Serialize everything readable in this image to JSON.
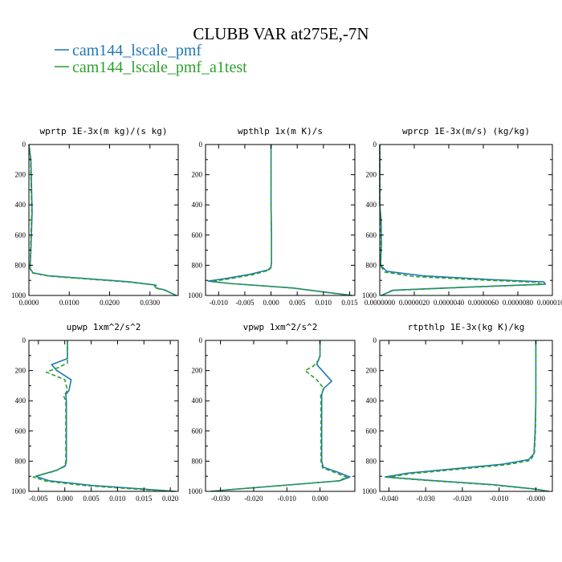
{
  "figure": {
    "title": "CLUBB VAR at275E,-7N",
    "legend": [
      {
        "label": "cam144_lscale_pmf",
        "color": "#1f77b4",
        "dash": "solid"
      },
      {
        "label": "cam144_lscale_pmf_a1test",
        "color": "#2ca02c",
        "dash": "dashed"
      }
    ]
  },
  "chart_data": [
    {
      "type": "line",
      "name": "wprtp",
      "title": "wprtp  1E-3x(m kg)/(s kg)",
      "xlim": [
        0,
        0.037
      ],
      "ylim": [
        0,
        1000
      ],
      "y_inverted": true,
      "xticks": [
        0,
        0.01,
        0.02,
        0.03
      ],
      "xticklabels": [
        "0.0000",
        "0.0100",
        "0.0200",
        "0.0300"
      ],
      "yticks": [
        0,
        200,
        400,
        600,
        800,
        1000
      ],
      "series": [
        {
          "name": "cam144_lscale_pmf",
          "x": [
            0,
            0.0005,
            0.0008,
            0.0005,
            0.0003,
            0.001,
            0.005,
            0.015,
            0.025,
            0.031,
            0.0315,
            0.0335,
            0.0365
          ],
          "y": [
            0,
            100,
            450,
            700,
            820,
            850,
            870,
            890,
            910,
            930,
            950,
            962,
            1000
          ]
        },
        {
          "name": "cam144_lscale_pmf_a1test",
          "x": [
            0,
            0.0004,
            0.0007,
            0.0004,
            0.0003,
            0.001,
            0.005,
            0.015,
            0.025,
            0.0315,
            0.0315,
            0.0335,
            0.0365
          ],
          "y": [
            0,
            100,
            450,
            700,
            825,
            852,
            872,
            892,
            912,
            932,
            952,
            964,
            1000
          ]
        }
      ]
    },
    {
      "type": "line",
      "name": "wpthlp",
      "title": "wpthlp  1x(m K)/s",
      "xlim": [
        -0.0125,
        0.016
      ],
      "ylim": [
        0,
        1000
      ],
      "y_inverted": true,
      "xticks": [
        -0.01,
        -0.005,
        0,
        0.005,
        0.01,
        0.015
      ],
      "xticklabels": [
        "-0.010",
        "-0.005",
        "0.000",
        "0.005",
        "0.010",
        "0.015"
      ],
      "yticks": [
        0,
        200,
        400,
        600,
        800,
        1000
      ],
      "series": [
        {
          "name": "cam144_lscale_pmf",
          "x": [
            0,
            0,
            0.0001,
            0.0001,
            0,
            -0.0005,
            -0.004,
            -0.009,
            -0.012,
            -0.008,
            0.004,
            0.012,
            0.0155
          ],
          "y": [
            0,
            400,
            600,
            780,
            810,
            830,
            860,
            890,
            905,
            920,
            950,
            985,
            1000
          ]
        },
        {
          "name": "cam144_lscale_pmf_a1test",
          "x": [
            0,
            0,
            0.0001,
            0.0001,
            0,
            -0.0004,
            -0.0035,
            -0.0085,
            -0.0115,
            -0.0075,
            0.0045,
            0.012,
            0.0155
          ],
          "y": [
            0,
            400,
            600,
            780,
            815,
            833,
            863,
            893,
            908,
            922,
            952,
            986,
            1000
          ]
        }
      ]
    },
    {
      "type": "line",
      "name": "wprcp",
      "title": "wprcp  1E-3x(m/s) (kg/kg)",
      "xlim": [
        0,
        1e-05
      ],
      "ylim": [
        0,
        1000
      ],
      "y_inverted": true,
      "xticks": [
        0,
        2e-06,
        4e-06,
        6e-06,
        8e-06,
        1e-05
      ],
      "xticklabels": [
        "0.0000000",
        "0.0000020",
        "0.0000040",
        "0.0000060",
        "0.0000080",
        "0.0000100"
      ],
      "yticks": [
        0,
        200,
        400,
        600,
        800,
        1000
      ],
      "series": [
        {
          "name": "cam144_lscale_pmf",
          "x": [
            0,
            0,
            8e-08,
            1e-07,
            5e-08,
            4e-07,
            2.5e-06,
            6.5e-06,
            9.5e-06,
            9.6e-06,
            5e-06,
            8e-07,
            1e-07
          ],
          "y": [
            0,
            400,
            500,
            650,
            800,
            840,
            870,
            895,
            910,
            925,
            945,
            965,
            1000
          ]
        },
        {
          "name": "cam144_lscale_pmf_a1test",
          "x": [
            0,
            0,
            5e-08,
            7e-08,
            4e-08,
            3e-07,
            2e-06,
            6e-06,
            9e-06,
            9.4e-06,
            4.8e-06,
            7e-07,
            1e-07
          ],
          "y": [
            0,
            400,
            500,
            650,
            805,
            845,
            875,
            898,
            912,
            927,
            947,
            967,
            1000
          ]
        }
      ]
    },
    {
      "type": "line",
      "name": "upwp",
      "title": "upwp  1xm^2/s^2",
      "xlim": [
        -0.0068,
        0.0215
      ],
      "ylim": [
        0,
        1000
      ],
      "y_inverted": true,
      "xticks": [
        -0.005,
        0,
        0.005,
        0.01,
        0.015,
        0.02
      ],
      "xticklabels": [
        "-0.005",
        "0.000",
        "0.005",
        "0.010",
        "0.015",
        "0.020"
      ],
      "yticks": [
        0,
        200,
        400,
        600,
        800,
        1000
      ],
      "series": [
        {
          "name": "cam144_lscale_pmf",
          "x": [
            0.0005,
            0.0005,
            -0.0025,
            -0.0015,
            0.0012,
            0.0008,
            0.0002,
            0.0003,
            0.0003,
            0.0003,
            0.0001,
            -0.0015,
            -0.0055,
            -0.003,
            0.005,
            0.015,
            0.021
          ],
          "y": [
            0,
            120,
            160,
            200,
            260,
            330,
            360,
            400,
            600,
            800,
            830,
            860,
            900,
            930,
            960,
            985,
            1000
          ]
        },
        {
          "name": "cam144_lscale_pmf_a1test",
          "x": [
            0.0005,
            0.0005,
            -0.0012,
            -0.0035,
            0,
            0.0005,
            -0.0002,
            0.0002,
            0.0002,
            0.0002,
            0,
            -0.0018,
            -0.006,
            -0.0035,
            0.004,
            0.014,
            0.0205
          ],
          "y": [
            0,
            150,
            180,
            210,
            260,
            330,
            370,
            400,
            600,
            800,
            835,
            865,
            905,
            933,
            962,
            986,
            1000
          ]
        }
      ]
    },
    {
      "type": "line",
      "name": "vpwp",
      "title": "vpwp  1xm^2/s^2",
      "xlim": [
        -0.0345,
        0.0105
      ],
      "ylim": [
        0,
        1000
      ],
      "y_inverted": true,
      "xticks": [
        -0.03,
        -0.02,
        -0.01,
        0
      ],
      "xticklabels": [
        "-0.030",
        "-0.020",
        "-0.010",
        "0.000"
      ],
      "yticks": [
        0,
        200,
        400,
        600,
        800,
        1000
      ],
      "series": [
        {
          "name": "cam144_lscale_pmf",
          "x": [
            0,
            0,
            -0.001,
            0.0015,
            0.0035,
            0.001,
            0.0005,
            0.0005,
            0.0005,
            0.001,
            0.005,
            0.009,
            0.006,
            -0.008,
            -0.025,
            -0.033
          ],
          "y": [
            0,
            100,
            160,
            220,
            270,
            320,
            360,
            400,
            800,
            840,
            870,
            905,
            930,
            955,
            985,
            1000
          ]
        },
        {
          "name": "cam144_lscale_pmf_a1test",
          "x": [
            0,
            0,
            -0.002,
            -0.0045,
            -0.001,
            0.0012,
            0.0002,
            0.0003,
            0.0003,
            0.0008,
            0.0045,
            0.0082,
            0.005,
            -0.009,
            -0.026,
            -0.033
          ],
          "y": [
            0,
            120,
            170,
            200,
            260,
            320,
            360,
            400,
            800,
            845,
            875,
            908,
            932,
            957,
            986,
            1000
          ]
        }
      ]
    },
    {
      "type": "line",
      "name": "rtpthlp",
      "title": "rtpthlp  1E-3x(kg K)/kg",
      "xlim": [
        -0.0425,
        0.0045
      ],
      "ylim": [
        0,
        1000
      ],
      "y_inverted": true,
      "xticks": [
        -0.04,
        -0.03,
        -0.02,
        -0.01,
        0
      ],
      "xticklabels": [
        "-0.040",
        "-0.030",
        "-0.020",
        "-0.010",
        "-0.000"
      ],
      "yticks": [
        0,
        200,
        400,
        600,
        800,
        1000
      ],
      "series": [
        {
          "name": "cam144_lscale_pmf",
          "x": [
            0,
            0,
            -0.0002,
            -0.0005,
            -0.002,
            -0.009,
            -0.022,
            -0.035,
            -0.041,
            -0.03,
            -0.012,
            0,
            0.0035
          ],
          "y": [
            0,
            400,
            600,
            750,
            790,
            820,
            850,
            880,
            905,
            925,
            955,
            985,
            1000
          ]
        },
        {
          "name": "cam144_lscale_pmf_a1test",
          "x": [
            0,
            0,
            -0.0001,
            -0.0004,
            -0.0015,
            -0.008,
            -0.021,
            -0.034,
            -0.0405,
            -0.03,
            -0.012,
            0,
            0.0035
          ],
          "y": [
            0,
            400,
            600,
            750,
            795,
            824,
            853,
            883,
            907,
            927,
            957,
            986,
            1000
          ]
        }
      ]
    }
  ]
}
